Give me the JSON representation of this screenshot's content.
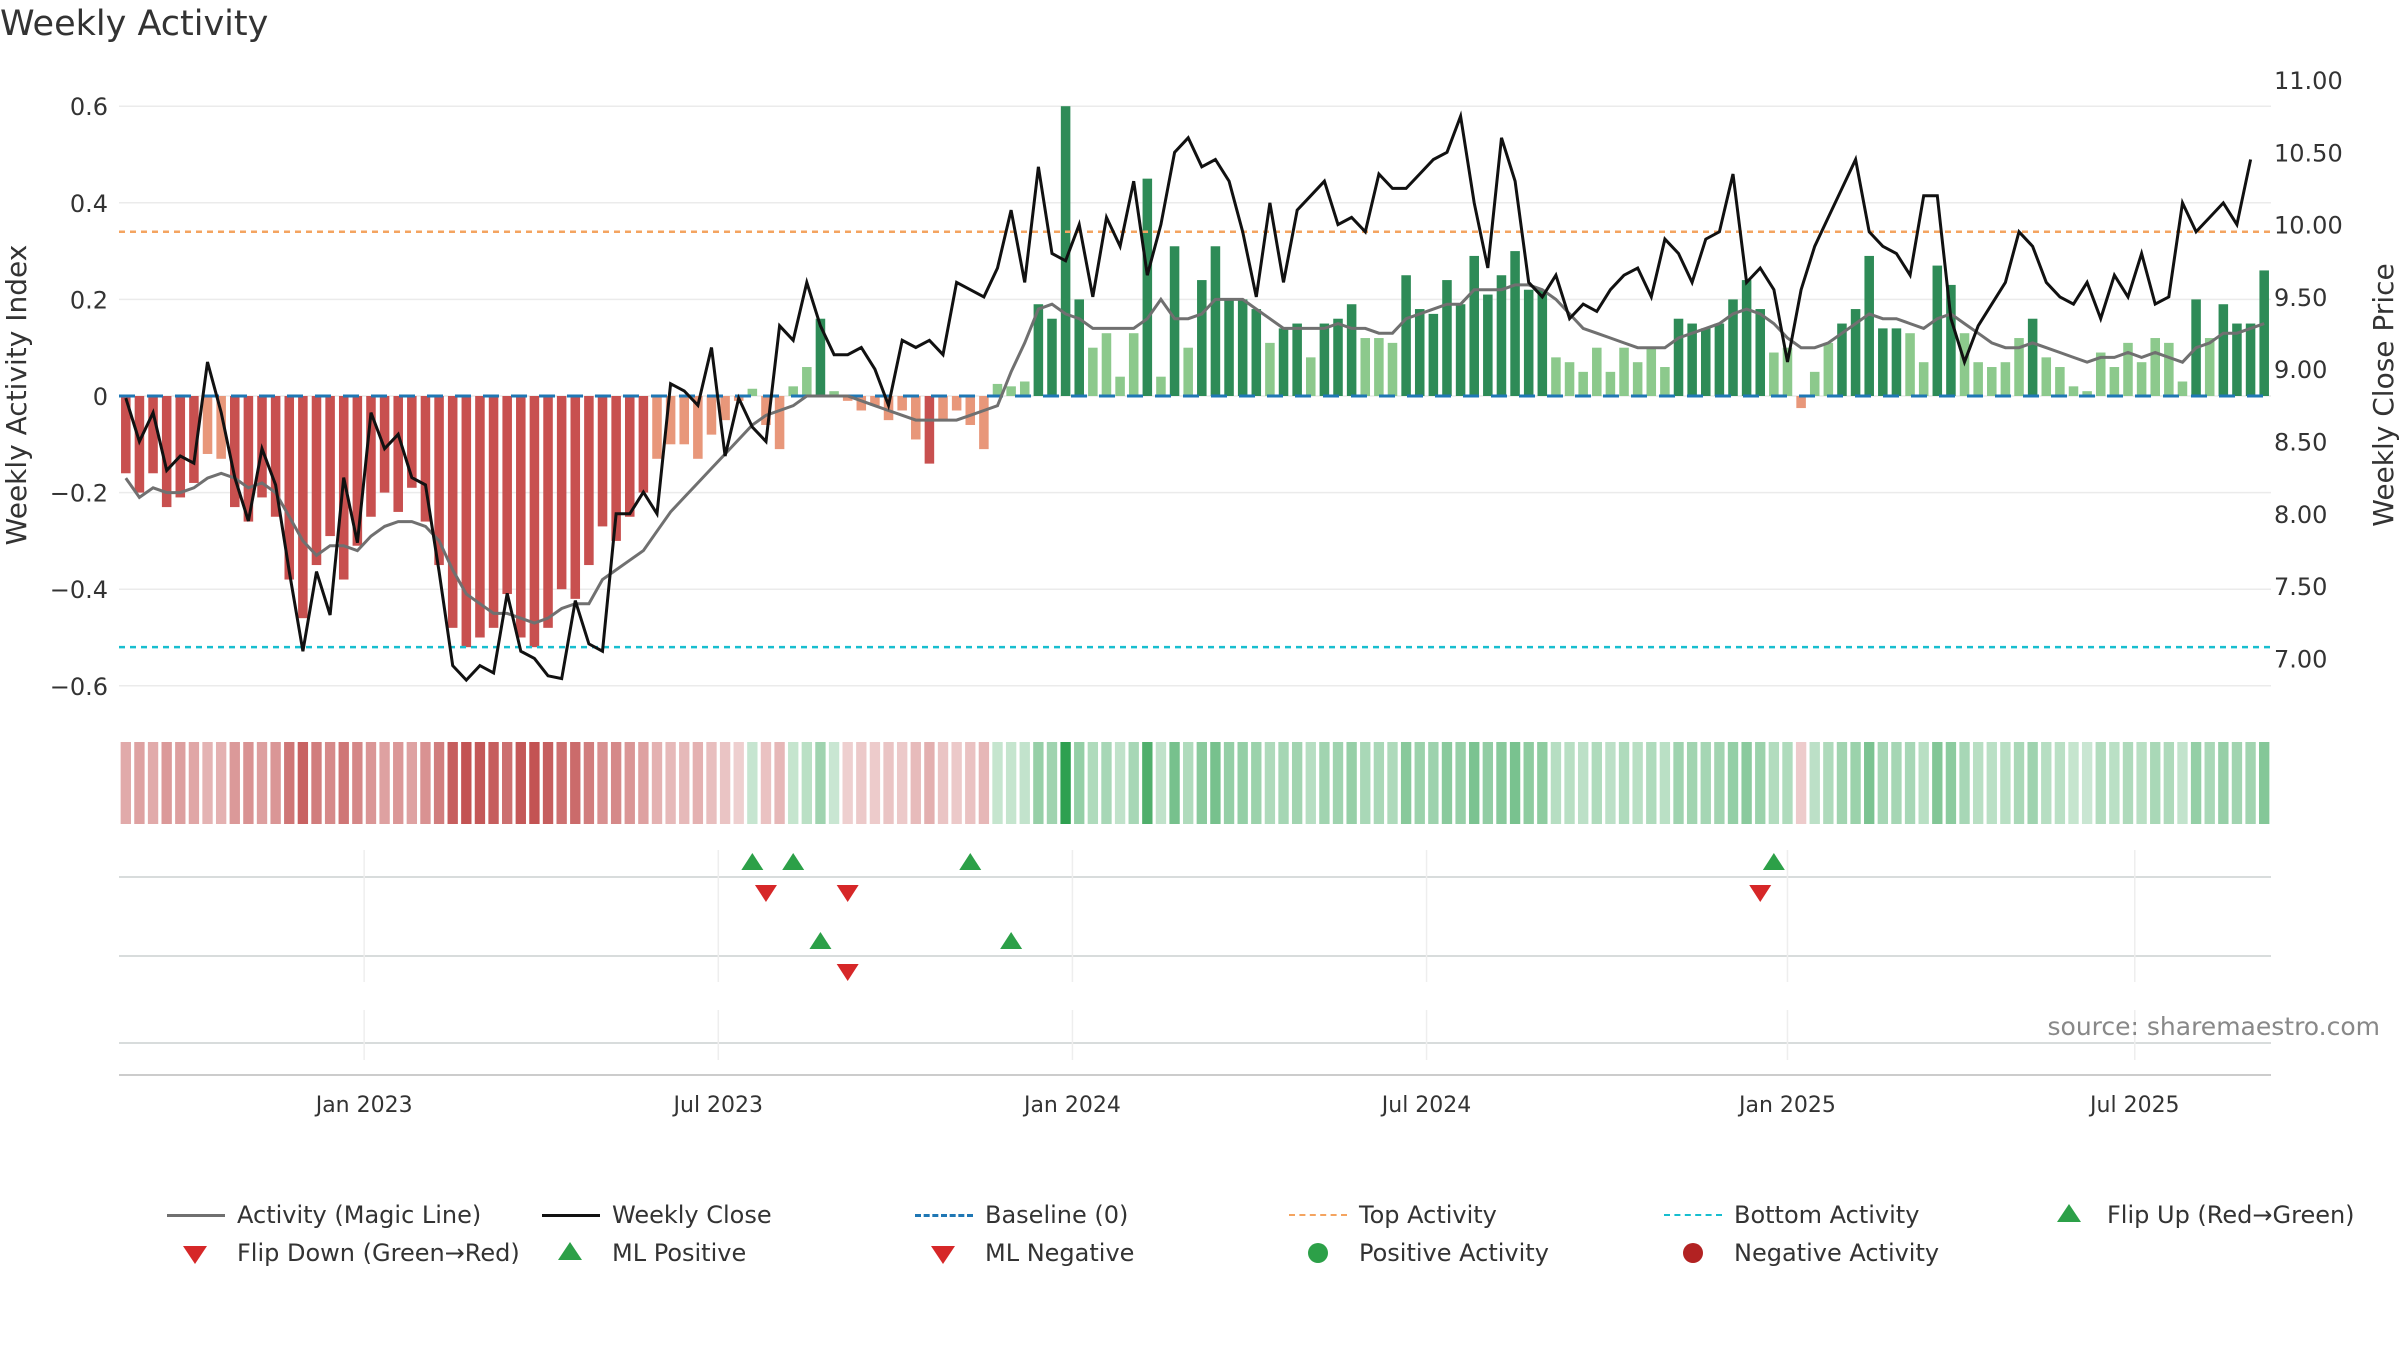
{
  "title": "Weekly Activity",
  "source_note": "source: sharemaestro.com",
  "colors": {
    "magic_line": "#707070",
    "weekly_close": "#111111",
    "baseline": "#1f77b4",
    "top_activity": "#f4a460",
    "bottom_activity": "#17becf",
    "positive_dark": "#2e8b57",
    "positive_light": "#8cc98c",
    "negative_dark": "#c8504f",
    "negative_light": "#e8977a",
    "flip_up": "#2ca048",
    "flip_down": "#d62728"
  },
  "chart_data": {
    "type": "bar",
    "title": "Weekly Activity",
    "ylabel_left": "Weekly Activity Index",
    "ylabel_right": "Weekly Close Price",
    "ylim_left": [
      -0.65,
      0.6
    ],
    "ylim_right": [
      6.75,
      11.0
    ],
    "left_ticks": [
      "0.6",
      "0.4",
      "0.2",
      "0",
      "−0.2",
      "−0.4",
      "−0.6"
    ],
    "left_tick_values": [
      0.6,
      0.4,
      0.2,
      0,
      -0.2,
      -0.4,
      -0.6
    ],
    "right_ticks": [
      "11.00",
      "10.50",
      "10.00",
      "9.50",
      "9.00",
      "8.50",
      "8.00",
      "7.50",
      "7.00"
    ],
    "right_tick_values": [
      11.0,
      10.5,
      10.0,
      9.5,
      9.0,
      8.5,
      8.0,
      7.5,
      7.0
    ],
    "x_ticks": [
      "Jan 2023",
      "Jul 2023",
      "Jan 2024",
      "Jul 2024",
      "Jan 2025",
      "Jul 2025"
    ],
    "x_tick_weeks": [
      17.5,
      43.5,
      69.5,
      95.5,
      122,
      147.5
    ],
    "grid": true,
    "top_activity_level": 0.34,
    "bottom_activity_level": -0.52,
    "baseline_level": 0,
    "weeks": 158,
    "activity": [
      -0.16,
      -0.2,
      -0.16,
      -0.23,
      -0.21,
      -0.18,
      -0.12,
      -0.13,
      -0.23,
      -0.26,
      -0.21,
      -0.25,
      -0.38,
      -0.46,
      -0.35,
      -0.29,
      -0.38,
      -0.31,
      -0.25,
      -0.2,
      -0.24,
      -0.19,
      -0.26,
      -0.35,
      -0.48,
      -0.52,
      -0.5,
      -0.48,
      -0.41,
      -0.5,
      -0.52,
      -0.48,
      -0.4,
      -0.42,
      -0.35,
      -0.27,
      -0.3,
      -0.25,
      -0.2,
      -0.13,
      -0.1,
      -0.1,
      -0.13,
      -0.08,
      -0.05,
      -0.01,
      0.015,
      -0.06,
      -0.11,
      0.02,
      0.06,
      0.16,
      0.01,
      -0.01,
      -0.03,
      -0.02,
      -0.05,
      -0.03,
      -0.09,
      -0.14,
      -0.05,
      -0.03,
      -0.06,
      -0.11,
      0.025,
      0.02,
      0.03,
      0.19,
      0.16,
      0.6,
      0.2,
      0.1,
      0.13,
      0.04,
      0.13,
      0.45,
      0.04,
      0.31,
      0.1,
      0.24,
      0.31,
      0.2,
      0.2,
      0.18,
      0.11,
      0.14,
      0.15,
      0.08,
      0.15,
      0.16,
      0.19,
      0.12,
      0.12,
      0.11,
      0.25,
      0.18,
      0.17,
      0.24,
      0.19,
      0.29,
      0.21,
      0.25,
      0.3,
      0.22,
      0.22,
      0.08,
      0.07,
      0.05,
      0.1,
      0.05,
      0.1,
      0.07,
      0.1,
      0.06,
      0.16,
      0.15,
      0.14,
      0.15,
      0.2,
      0.24,
      0.18,
      0.09,
      0.1,
      -0.025,
      0.05,
      0.11,
      0.15,
      0.18,
      0.29,
      0.14,
      0.14,
      0.13,
      0.07,
      0.27,
      0.23,
      0.13,
      0.07,
      0.06,
      0.07,
      0.12,
      0.16,
      0.08,
      0.06,
      0.02,
      0.01,
      0.09,
      0.06,
      0.11,
      0.07,
      0.12,
      0.11,
      0.03,
      0.2,
      0.12,
      0.19,
      0.15,
      0.15,
      0.26
    ],
    "weekly_close": [
      8.8,
      8.5,
      8.7,
      8.3,
      8.4,
      8.35,
      9.05,
      8.7,
      8.25,
      7.95,
      8.45,
      8.2,
      7.6,
      7.05,
      7.6,
      7.3,
      8.25,
      7.8,
      8.7,
      8.45,
      8.55,
      8.25,
      8.2,
      7.6,
      6.95,
      6.85,
      6.95,
      6.9,
      7.45,
      7.05,
      7.0,
      6.88,
      6.86,
      7.4,
      7.1,
      7.05,
      8.0,
      8.0,
      8.15,
      8.0,
      8.9,
      8.85,
      8.75,
      9.15,
      8.4,
      8.8,
      8.6,
      8.5,
      9.3,
      9.2,
      9.6,
      9.3,
      9.1,
      9.1,
      9.15,
      9.0,
      8.75,
      9.2,
      9.15,
      9.2,
      9.1,
      9.6,
      9.55,
      9.5,
      9.7,
      10.1,
      9.6,
      10.4,
      9.8,
      9.75,
      10.0,
      9.5,
      10.05,
      9.85,
      10.3,
      9.65,
      10.0,
      10.5,
      10.6,
      10.4,
      10.45,
      10.3,
      9.95,
      9.5,
      10.15,
      9.6,
      10.1,
      10.2,
      10.3,
      10.0,
      10.05,
      9.95,
      10.35,
      10.25,
      10.25,
      10.35,
      10.45,
      10.5,
      10.75,
      10.15,
      9.7,
      10.6,
      10.3,
      9.6,
      9.5,
      9.65,
      9.35,
      9.45,
      9.4,
      9.55,
      9.65,
      9.7,
      9.5,
      9.9,
      9.8,
      9.6,
      9.9,
      9.95,
      10.35,
      9.6,
      9.7,
      9.55,
      9.05,
      9.55,
      9.85,
      10.05,
      10.25,
      10.45,
      9.95,
      9.85,
      9.8,
      9.65,
      10.2,
      10.2,
      9.35,
      9.05,
      9.3,
      9.45,
      9.6,
      9.95,
      9.85,
      9.6,
      9.5,
      9.45,
      9.6,
      9.35,
      9.65,
      9.5,
      9.8,
      9.45,
      9.5,
      10.15,
      9.95,
      10.05,
      10.15,
      10.0,
      10.45
    ],
    "magic_line": [
      -0.17,
      -0.21,
      -0.19,
      -0.2,
      -0.2,
      -0.19,
      -0.17,
      -0.16,
      -0.17,
      -0.19,
      -0.18,
      -0.2,
      -0.25,
      -0.3,
      -0.33,
      -0.31,
      -0.31,
      -0.32,
      -0.29,
      -0.27,
      -0.26,
      -0.26,
      -0.27,
      -0.3,
      -0.36,
      -0.41,
      -0.43,
      -0.45,
      -0.45,
      -0.46,
      -0.47,
      -0.46,
      -0.44,
      -0.43,
      -0.43,
      -0.38,
      -0.36,
      -0.34,
      -0.32,
      -0.28,
      -0.24,
      -0.21,
      -0.18,
      -0.15,
      -0.12,
      -0.09,
      -0.06,
      -0.04,
      -0.03,
      -0.02,
      0.0,
      0.0,
      0.0,
      0.0,
      -0.01,
      -0.02,
      -0.03,
      -0.04,
      -0.05,
      -0.05,
      -0.05,
      -0.05,
      -0.04,
      -0.03,
      -0.02,
      0.05,
      0.11,
      0.18,
      0.19,
      0.17,
      0.16,
      0.14,
      0.14,
      0.14,
      0.14,
      0.16,
      0.2,
      0.16,
      0.16,
      0.17,
      0.2,
      0.2,
      0.2,
      0.18,
      0.16,
      0.14,
      0.14,
      0.14,
      0.14,
      0.15,
      0.14,
      0.14,
      0.13,
      0.13,
      0.16,
      0.17,
      0.18,
      0.19,
      0.19,
      0.22,
      0.22,
      0.22,
      0.23,
      0.23,
      0.22,
      0.2,
      0.17,
      0.14,
      0.13,
      0.12,
      0.11,
      0.1,
      0.1,
      0.1,
      0.12,
      0.13,
      0.14,
      0.15,
      0.17,
      0.18,
      0.17,
      0.15,
      0.12,
      0.1,
      0.1,
      0.11,
      0.13,
      0.15,
      0.17,
      0.16,
      0.16,
      0.15,
      0.14,
      0.16,
      0.17,
      0.15,
      0.13,
      0.11,
      0.1,
      0.1,
      0.11,
      0.1,
      0.09,
      0.08,
      0.07,
      0.08,
      0.08,
      0.09,
      0.08,
      0.09,
      0.08,
      0.07,
      0.1,
      0.11,
      0.13,
      0.13,
      0.14,
      0.15
    ],
    "signal_rows": [
      {
        "name": "Flip Up (Red→Green)",
        "up_weeks": [
          46,
          49,
          62,
          121
        ]
      },
      {
        "name": "Flip Down (Green→Red)",
        "down_weeks": [
          47,
          53,
          120
        ]
      },
      {
        "name": "ML Positive",
        "up_weeks": [
          51,
          65
        ]
      },
      {
        "name": "ML Negative",
        "down_weeks": [
          53
        ]
      }
    ]
  },
  "legend": [
    {
      "label": "Activity (Magic Line)",
      "symbol": "solid-gray-line"
    },
    {
      "label": "Weekly Close",
      "symbol": "solid-black-line"
    },
    {
      "label": "Baseline (0)",
      "symbol": "dashed-blue-line"
    },
    {
      "label": "Top Activity",
      "symbol": "dotted-orange-line"
    },
    {
      "label": "Bottom Activity",
      "symbol": "dotted-cyan-line"
    },
    {
      "label": "Flip Up (Red→Green)",
      "symbol": "green-up-triangle"
    },
    {
      "label": "Flip Down (Green→Red)",
      "symbol": "red-down-triangle"
    },
    {
      "label": "ML Positive",
      "symbol": "green-up-triangle"
    },
    {
      "label": "ML Negative",
      "symbol": "red-down-triangle"
    },
    {
      "label": "Positive Activity",
      "symbol": "green-circle"
    },
    {
      "label": "Negative Activity",
      "symbol": "red-circle"
    }
  ]
}
